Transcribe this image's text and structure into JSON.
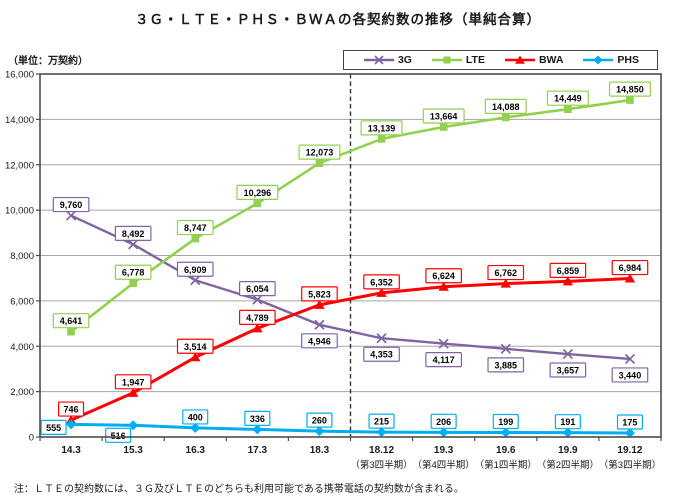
{
  "title": "３Ｇ・ＬＴＥ・ＰＨＳ・ＢＷＡの各契約数の推移（単純合算）",
  "unit_label": "（単位：万契約）",
  "note": "注：ＬＴＥの契約数には、３Ｇ及びＬＴＥのどちらも利用可能である携帯電話の契約数が含まれる。",
  "chart_data": {
    "type": "line",
    "title": "３Ｇ・ＬＴＥ・ＰＨＳ・ＢＷＡの各契約数の推移（単純合算）",
    "ylabel": "（単位：万契約）",
    "ylim": [
      0,
      16000
    ],
    "ytick_step": 2000,
    "grid": "horizontal",
    "legend_position": "top-right",
    "divider_after_category": "18.3",
    "categories": [
      "14.3",
      "15.3",
      "16.3",
      "17.3",
      "18.3",
      "18.12",
      "19.3",
      "19.6",
      "19.9",
      "19.12"
    ],
    "category_sublabels": [
      "",
      "",
      "",
      "",
      "",
      "（第3四半期）",
      "（第4四半期）",
      "（第1四半期）",
      "（第2四半期）",
      "（第3四半期）"
    ],
    "series": [
      {
        "name": "3G",
        "color": "#8064A2",
        "marker": "x",
        "values": [
          9760,
          8492,
          6909,
          6054,
          4946,
          4353,
          4117,
          3885,
          3657,
          3440
        ],
        "label_pos": [
          "above",
          "above",
          "above",
          "above",
          "below",
          "below",
          "below",
          "below",
          "below",
          "below"
        ]
      },
      {
        "name": "LTE",
        "color": "#92D050",
        "marker": "square",
        "values": [
          4641,
          6778,
          8747,
          10296,
          12073,
          13139,
          13664,
          14088,
          14449,
          14850
        ],
        "label_pos": [
          "above",
          "above",
          "above",
          "above",
          "above",
          "above",
          "above",
          "above",
          "above",
          "above"
        ]
      },
      {
        "name": "BWA",
        "color": "#FF0000",
        "marker": "triangle",
        "values": [
          746,
          1947,
          3514,
          4789,
          5823,
          6352,
          6624,
          6762,
          6859,
          6984
        ],
        "label_pos": [
          "above",
          "above",
          "above",
          "above",
          "above",
          "above",
          "above",
          "above",
          "above",
          "above"
        ]
      },
      {
        "name": "PHS",
        "color": "#00AEEF",
        "marker": "diamond",
        "values": [
          555,
          516,
          400,
          336,
          260,
          215,
          206,
          199,
          191,
          175
        ],
        "label_pos": [
          "left",
          "below-left",
          "above",
          "above",
          "above",
          "above",
          "above",
          "above",
          "above",
          "above"
        ]
      }
    ]
  }
}
